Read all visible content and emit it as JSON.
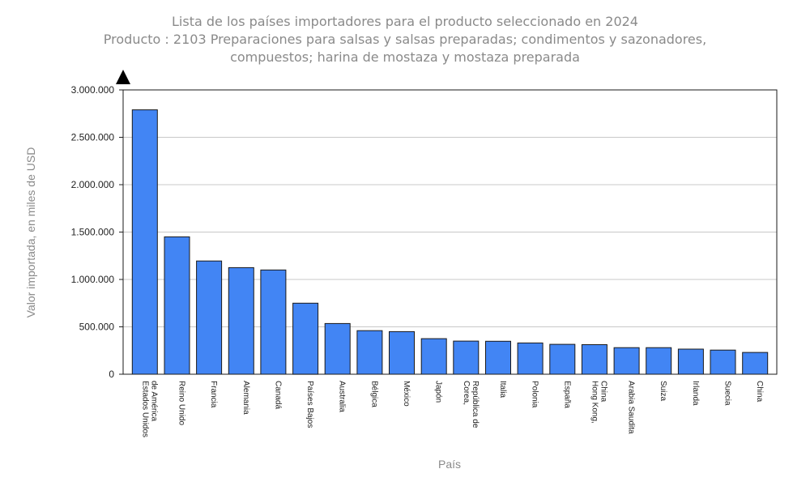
{
  "chart_data": {
    "type": "bar",
    "title": "Lista de los países importadores para el producto seleccionado en 2024",
    "subtitle_lines": [
      "Producto : 2103 Preparaciones para salsas y salsas preparadas; condimentos y sazonadores,",
      "compuestos; harina de mostaza y mostaza preparada"
    ],
    "xlabel": "País",
    "ylabel": "Valor importada, en miles de USD",
    "ylim": [
      0,
      3000000
    ],
    "yticks": [
      0,
      500000,
      1000000,
      1500000,
      2000000,
      2500000,
      3000000
    ],
    "ytick_labels": [
      "0",
      "500.000",
      "1.000.000",
      "1.500.000",
      "2.000.000",
      "2.500.000",
      "3.000.000"
    ],
    "categories": [
      [
        "Estados Unidos",
        "de América"
      ],
      [
        "Reino Unido"
      ],
      [
        "Francia"
      ],
      [
        "Alemania"
      ],
      [
        "Canadá"
      ],
      [
        "Países Bajos"
      ],
      [
        "Australia"
      ],
      [
        "Bélgica"
      ],
      [
        "México"
      ],
      [
        "Japón"
      ],
      [
        "Corea,",
        "República de"
      ],
      [
        "Italia"
      ],
      [
        "Polonia"
      ],
      [
        "España"
      ],
      [
        "Hong Kong,",
        "China"
      ],
      [
        "Arabia Saudita"
      ],
      [
        "Suiza"
      ],
      [
        "Irlanda"
      ],
      [
        "Suecia"
      ],
      [
        "China"
      ]
    ],
    "values": [
      2790000,
      1450000,
      1195000,
      1125000,
      1100000,
      750000,
      535000,
      460000,
      450000,
      375000,
      350000,
      348000,
      330000,
      315000,
      312000,
      280000,
      280000,
      265000,
      255000,
      230000
    ],
    "bar_color": "#4285f4",
    "grid": true
  }
}
